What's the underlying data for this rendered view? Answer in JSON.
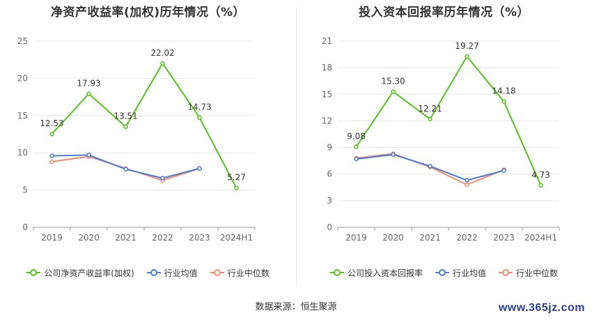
{
  "chart_data": [
    {
      "type": "line",
      "title": "净资产收益率(加权)历年情况（%）",
      "categories": [
        "2019",
        "2020",
        "2021",
        "2022",
        "2023",
        "2024H1"
      ],
      "y_ticks": [
        "0",
        "5",
        "10",
        "15",
        "20",
        "25"
      ],
      "ylim": [
        0,
        25
      ],
      "grid": true,
      "legend_position": "bottom",
      "series": [
        {
          "name": "公司净资产收益率(加权)",
          "color": "#52c41a",
          "values": [
            12.53,
            17.93,
            13.51,
            22.02,
            14.73,
            5.27
          ],
          "labels": [
            "12.53",
            "17.93",
            "13.51",
            "22.02",
            "14.73",
            "5.27"
          ]
        },
        {
          "name": "行业均值",
          "color": "#4a7bd8",
          "values": [
            9.6,
            9.7,
            7.8,
            6.6,
            7.9,
            null
          ]
        },
        {
          "name": "行业中位数",
          "color": "#f08b6e",
          "values": [
            8.8,
            9.5,
            7.9,
            6.3,
            7.9,
            null
          ]
        }
      ]
    },
    {
      "type": "line",
      "title": "投入资本回报率历年情况（%）",
      "categories": [
        "2019",
        "2020",
        "2021",
        "2022",
        "2023",
        "2024H1"
      ],
      "y_ticks": [
        "0",
        "3",
        "6",
        "9",
        "12",
        "15",
        "18",
        "21"
      ],
      "ylim": [
        0,
        21
      ],
      "grid": true,
      "legend_position": "bottom",
      "series": [
        {
          "name": "公司投入资本回报率",
          "color": "#52c41a",
          "values": [
            9.08,
            15.3,
            12.21,
            19.27,
            14.18,
            4.73
          ],
          "labels": [
            "9.08",
            "15.30",
            "12.21",
            "19.27",
            "14.18",
            "4.73"
          ]
        },
        {
          "name": "行业均值",
          "color": "#4a7bd8",
          "values": [
            7.7,
            8.2,
            6.9,
            5.3,
            6.4,
            null
          ]
        },
        {
          "name": "行业中位数",
          "color": "#f08b6e",
          "values": [
            7.8,
            8.3,
            6.8,
            4.8,
            6.5,
            null
          ]
        }
      ]
    }
  ],
  "footer": {
    "source": "数据来源：恒生聚源",
    "watermark": "www.365jz.com"
  }
}
